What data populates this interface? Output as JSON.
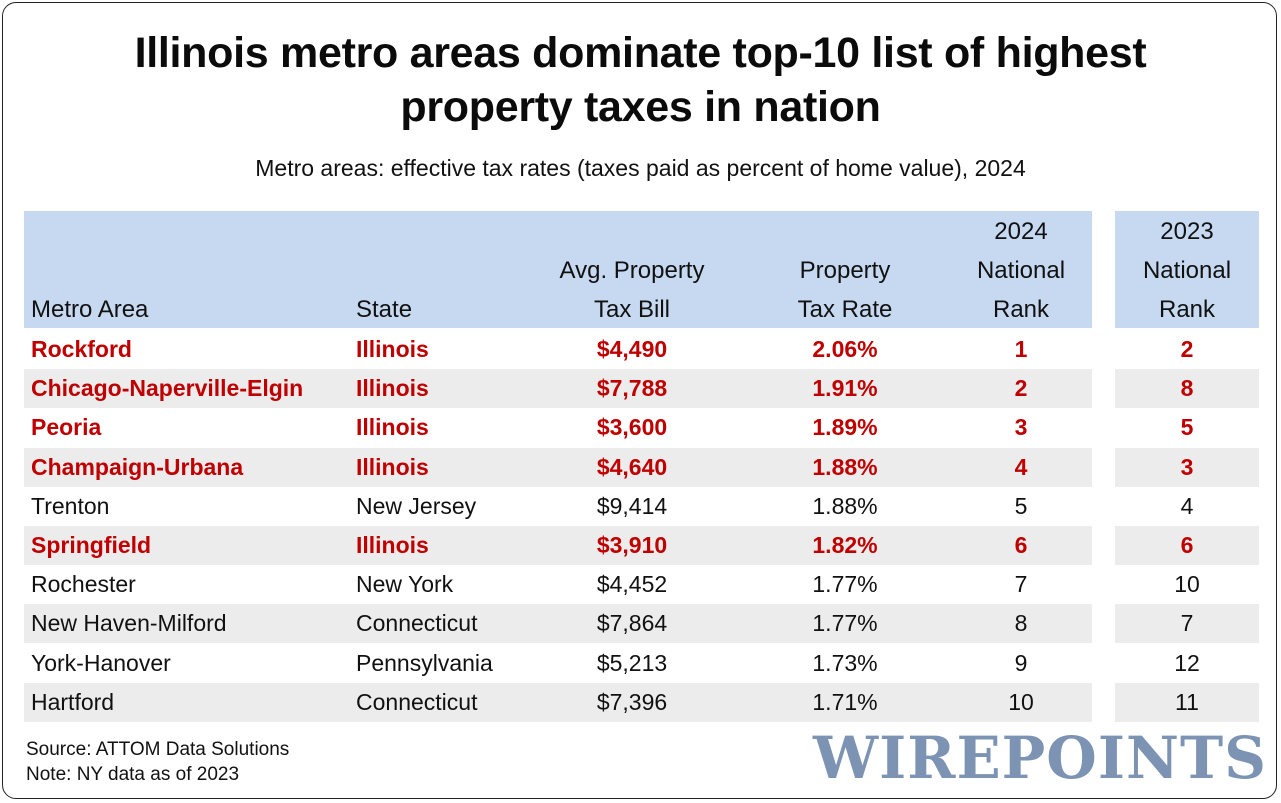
{
  "title_line1": "Illinois metro areas dominate top-10 list of highest",
  "title_line2": "property taxes in nation",
  "subtitle": "Metro areas: effective tax rates (taxes paid as percent of home value), 2024",
  "chart_data": {
    "type": "table",
    "highlight_state": "Illinois",
    "highlight_color": "#c00000",
    "header_color": "#c6d9f0",
    "stripe_color": "#ececec",
    "headers": {
      "metro": "Metro Area",
      "state": "State",
      "bill_1": "Avg. Property",
      "bill_2": "Tax Bill",
      "rate_1": "Property",
      "rate_2": "Tax Rate",
      "r24_1": "2024",
      "r24_2": "National",
      "r24_3": "Rank",
      "r23_1": "2023",
      "r23_2": "National",
      "r23_3": "Rank"
    },
    "rows": [
      {
        "metro": "Rockford",
        "state": "Illinois",
        "bill": "$4,490",
        "rate": "2.06%",
        "rank2024": "1",
        "rank2023": "2"
      },
      {
        "metro": "Chicago-Naperville-Elgin",
        "state": "Illinois",
        "bill": "$7,788",
        "rate": "1.91%",
        "rank2024": "2",
        "rank2023": "8"
      },
      {
        "metro": "Peoria",
        "state": "Illinois",
        "bill": "$3,600",
        "rate": "1.89%",
        "rank2024": "3",
        "rank2023": "5"
      },
      {
        "metro": "Champaign-Urbana",
        "state": "Illinois",
        "bill": "$4,640",
        "rate": "1.88%",
        "rank2024": "4",
        "rank2023": "3"
      },
      {
        "metro": "Trenton",
        "state": "New Jersey",
        "bill": "$9,414",
        "rate": "1.88%",
        "rank2024": "5",
        "rank2023": "4"
      },
      {
        "metro": "Springfield",
        "state": "Illinois",
        "bill": "$3,910",
        "rate": "1.82%",
        "rank2024": "6",
        "rank2023": "6"
      },
      {
        "metro": "Rochester",
        "state": "New York",
        "bill": "$4,452",
        "rate": "1.77%",
        "rank2024": "7",
        "rank2023": "10"
      },
      {
        "metro": "New Haven-Milford",
        "state": "Connecticut",
        "bill": "$7,864",
        "rate": "1.77%",
        "rank2024": "8",
        "rank2023": "7"
      },
      {
        "metro": "York-Hanover",
        "state": "Pennsylvania",
        "bill": "$5,213",
        "rate": "1.73%",
        "rank2024": "9",
        "rank2023": "12"
      },
      {
        "metro": "Hartford",
        "state": "Connecticut",
        "bill": "$7,396",
        "rate": "1.71%",
        "rank2024": "10",
        "rank2023": "11"
      }
    ]
  },
  "source": "Source: ATTOM Data Solutions",
  "note": "Note: NY data as of 2023",
  "logo": "WIREPOINTS"
}
